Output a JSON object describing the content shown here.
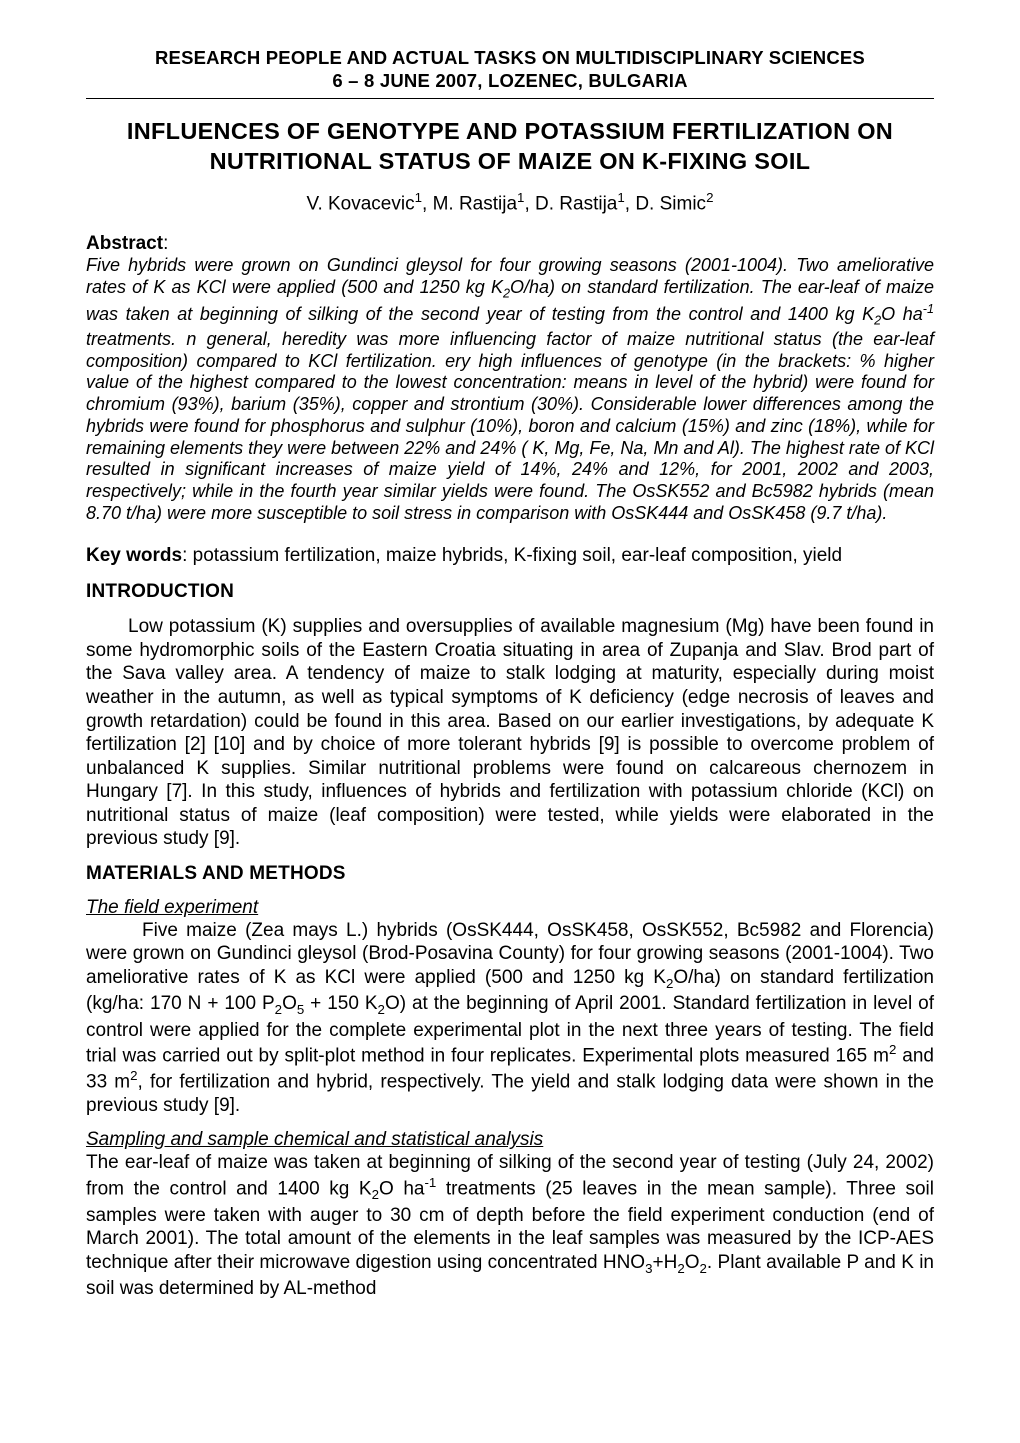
{
  "running_header": {
    "line1": "RESEARCH PEOPLE AND ACTUAL TASKS ON MULTIDISCIPLINARY SCIENCES",
    "line2": "6 – 8  JUNE 2007, LOZENEC, BULGARIA"
  },
  "title": {
    "line1": "INFLUENCES OF GENOTYPE AND POTASSIUM FERTILIZATION ON",
    "line2": "NUTRITIONAL STATUS OF MAIZE ON K-FIXING SOIL"
  },
  "authors": {
    "a1": "V. Kovacevic",
    "s1": "1",
    "a2": ", M. Rastija",
    "s2": "1",
    "a3": ", D. Rastija",
    "s3": "1",
    "a4": ", D. Simic",
    "s4": "2"
  },
  "abstract": {
    "label": "Abstract",
    "colon": ":",
    "p1a": "Five hybrids were grown on Gundinci gleysol for four growing seasons (2001-1004). Two ameliorative  rates of K as KCl were applied  (500 and 1250 kg K",
    "p1b": "O/ha) on standard fertilization. The ear-leaf of maize was taken at beginning of silking of the second year of testing from the control and 1400 kg K",
    "p1c": "O ha",
    "p1d": " treatments. n general, heredity was more influencing factor of maize nutritional status  (the ear-leaf composition) compared to KCl fertilization. ery high influences of genotype (in the brackets: % higher value of the highest  compared to the lowest concentration: means in level of the hybrid) were found for chromium (93%), barium (35%), copper and strontium (30%). Considerable lower differences among the hybrids were found for  phosphorus and sulphur (10%), boron and calcium (15%) and zinc (18%),  while for remaining elements  they were between 22% and 24% ( K, Mg, Fe, Na, Mn and Al). The highest rate of KCl resulted in significant increases of maize yield of 14%, 24% and 12%, for 2001, 2002 and 2003, respectively; while in the fourth year similar yields were found. The OsSK552 and Bc5982 hybrids (mean 8.70 t/ha) were more susceptible to soil stress in comparison with OsSK444 and OsSK458 (9.7 t/ha).",
    "sub2": "2",
    "supm1": "-1"
  },
  "keywords": {
    "label": "Key words",
    "text": ": potassium fertilization, maize hybrids, K-fixing soil, ear-leaf composition, yield"
  },
  "intro": {
    "heading": "INTRODUCTION",
    "p1": "Low potassium (K) supplies and oversupplies of available magnesium (Mg) have been found in some hydromorphic soils of the Eastern Croatia situating in area of Zupanja and Slav. Brod part of the Sava valley area.  A tendency of maize to stalk lodging at maturity, especially during moist weather in the autumn, as well as typical symptoms of K deficiency (edge necrosis of leaves and growth retardation) could be found in this area. Based on our earlier investigations, by adequate K fertilization [2] [10] and by choice of more tolerant hybrids [9] is possible to overcome problem of unbalanced K supplies. Similar nutritional problems were found on calcareous chernozem in Hungary [7]. In this study, influences of hybrids and fertilization with potassium chloride (KCl) on nutritional status of maize (leaf composition) were tested, while   yields were elaborated in the previous study [9]."
  },
  "mm": {
    "heading": "MATERIALS AND METHODS",
    "sub1": "The field experiment",
    "p1a": "Five maize (Zea mays L.) hybrids (OsSK444, OsSK458, OsSK552, Bc5982 and Florencia) were grown on Gundinci gleysol (Brod-Posavina County) for four growing seasons (2001-1004). Two ameliorative  rates of K as KCl were applied  (500 and 1250 kg K",
    "p1b": "O/ha) on standard fertilization (kg/ha: 170 N + 100 P",
    "p1c": "O",
    "p1d": " + 150 K",
    "p1e": "O) at the beginning of April 2001. Standard fertilization in level of control were applied for the complete experimental plot in the next three years of testing. The field trial was carried out by split-plot method in four replicates. Experimental plots measured 165 m",
    "p1f": " and 33 m",
    "p1g": ", for fertilization and hybrid, respectively. The yield and stalk lodging data were  shown in the previous study [9].",
    "sub2lbl": "2",
    "sub5lbl": "5",
    "sup2lbl": "2",
    "sub2": "Sampling and sample chemical and statistical analysis",
    "p2a": "The ear-leaf of maize was taken at beginning of silking of the second year of testing (July 24, 2002) from the control and 1400 kg K",
    "p2b": "O ha",
    "p2c": " treatments (25 leaves in the mean sample). Three soil samples were taken with auger to 30 cm of depth before the field experiment conduction (end of March 2001). The total amount of the elements in the leaf samples was measured by the ICP-AES technique after their microwave digestion using concentrated HNO",
    "p2d": "+H",
    "p2e": "O",
    "p2f": ". Plant available P and K in soil was determined by AL-method",
    "supm1": "-1",
    "sub3lbl": "3"
  }
}
